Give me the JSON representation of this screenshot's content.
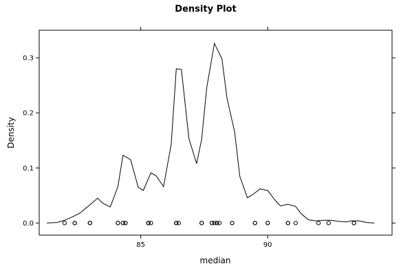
{
  "chart_data": {
    "type": "line",
    "title": "Density Plot",
    "xlabel": "median",
    "ylabel": "Density",
    "xlim": [
      81.0,
      94.9
    ],
    "ylim": [
      -0.022,
      0.35
    ],
    "x_ticks": [
      85,
      90
    ],
    "x_tick_labels": [
      "85",
      "90"
    ],
    "y_ticks": [
      0.0,
      0.1,
      0.2,
      0.3
    ],
    "y_tick_labels": [
      "0.0",
      "0.1",
      "0.2",
      "0.3"
    ],
    "grid": false,
    "legend": "none",
    "series": [
      {
        "x": [
          81.3,
          81.7,
          82.0,
          82.3,
          82.6,
          83.0,
          83.3,
          83.5,
          83.8,
          84.1,
          84.3,
          84.6,
          84.9,
          85.1,
          85.4,
          85.6,
          85.9,
          86.2,
          86.4,
          86.6,
          86.9,
          87.2,
          87.4,
          87.6,
          87.9,
          88.2,
          88.4,
          88.7,
          88.9,
          89.2,
          89.4,
          89.7,
          90.0,
          90.3,
          90.5,
          90.8,
          91.1,
          91.3,
          91.6,
          91.9,
          92.2,
          92.5,
          92.8,
          93.1,
          93.3,
          93.6,
          93.9,
          94.2
        ],
        "y": [
          0.0,
          0.001,
          0.005,
          0.011,
          0.018,
          0.033,
          0.045,
          0.036,
          0.029,
          0.066,
          0.123,
          0.115,
          0.065,
          0.059,
          0.091,
          0.086,
          0.066,
          0.143,
          0.28,
          0.279,
          0.153,
          0.108,
          0.152,
          0.246,
          0.326,
          0.298,
          0.226,
          0.165,
          0.085,
          0.046,
          0.051,
          0.062,
          0.059,
          0.041,
          0.031,
          0.034,
          0.03,
          0.018,
          0.006,
          0.004,
          0.005,
          0.005,
          0.003,
          0.002,
          0.004,
          0.004,
          0.001,
          0.0
        ]
      }
    ],
    "rug": {
      "x": [
        82.0,
        82.4,
        82.4,
        83.0,
        83.0,
        83.0,
        84.1,
        84.1,
        84.3,
        84.3,
        84.4,
        84.4,
        85.3,
        85.3,
        85.3,
        85.3,
        85.4,
        86.4,
        86.4,
        86.4,
        86.5,
        87.4,
        87.4,
        87.8,
        87.8,
        87.9,
        88.0,
        88.0,
        88.1,
        88.6,
        88.6,
        89.5,
        89.5,
        90.0,
        90.0,
        90.8,
        90.8,
        91.1,
        92.0,
        92.4,
        93.4,
        93.4
      ],
      "y": [
        0.0,
        0.0,
        0.0,
        0.0,
        0.0,
        0.0,
        0.0,
        0.0,
        0.0,
        0.0,
        0.0,
        0.0,
        0.0,
        0.0,
        0.0,
        0.0,
        0.0,
        0.0,
        0.0,
        0.0,
        0.0,
        0.0,
        0.0,
        0.0,
        0.0,
        0.0,
        0.0,
        0.0,
        0.0,
        0.0,
        0.0,
        0.0,
        0.0,
        0.0,
        0.0,
        0.0,
        0.0,
        0.0,
        0.0,
        0.0,
        0.0,
        0.0
      ]
    }
  }
}
